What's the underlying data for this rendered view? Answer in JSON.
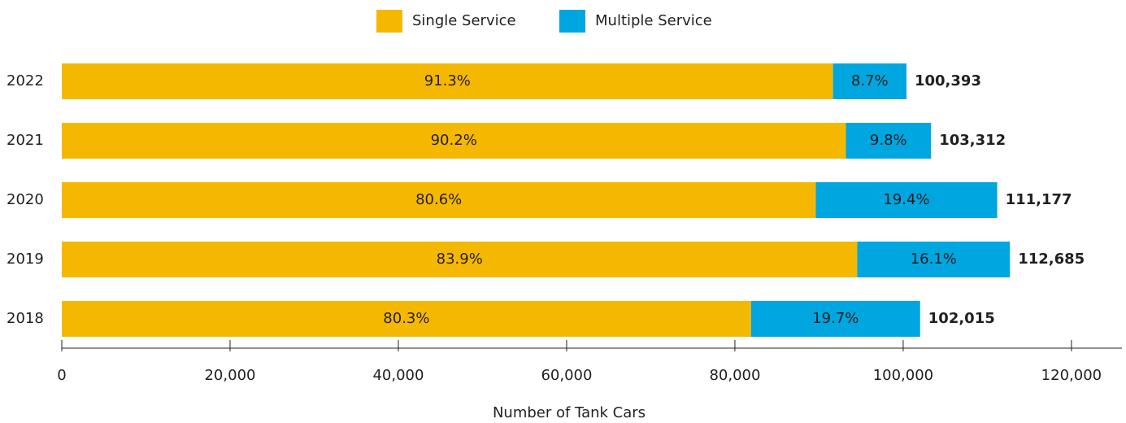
{
  "chart_data": {
    "type": "stacked-bar-horizontal",
    "x_label": "Number of Tank Cars",
    "categories": [
      "2022",
      "2021",
      "2020",
      "2019",
      "2018"
    ],
    "series": [
      {
        "name": "Single Service",
        "color": "#f5b800",
        "values": [
          91659,
          93187,
          89609,
          94543,
          81918
        ],
        "share_labels": [
          "91.3%",
          "90.2%",
          "80.6%",
          "83.9%",
          "80.3%"
        ]
      },
      {
        "name": "Multiple Service",
        "color": "#00a6e0",
        "values": [
          8734,
          10125,
          21568,
          18142,
          20097
        ],
        "share_labels": [
          "8.7%",
          "9.8%",
          "19.4%",
          "16.1%",
          "19.7%"
        ]
      }
    ],
    "totals": [
      100393,
      103312,
      111177,
      112685,
      102015
    ],
    "total_labels": [
      "100,393",
      "103,312",
      "111,177",
      "112,685",
      "102,015"
    ],
    "xlim": [
      0,
      126000
    ],
    "xticks": [
      0,
      {
        "value": 20000,
        "label": "20,000"
      },
      {
        "value": 40000,
        "label": "40,000"
      },
      {
        "value": 60000,
        "label": "60,000"
      },
      {
        "value": 80000,
        "label": "80,000"
      },
      {
        "value": 100000,
        "label": "100,000"
      },
      {
        "value": 120000,
        "label": "120,000"
      }
    ],
    "legend": "top"
  }
}
